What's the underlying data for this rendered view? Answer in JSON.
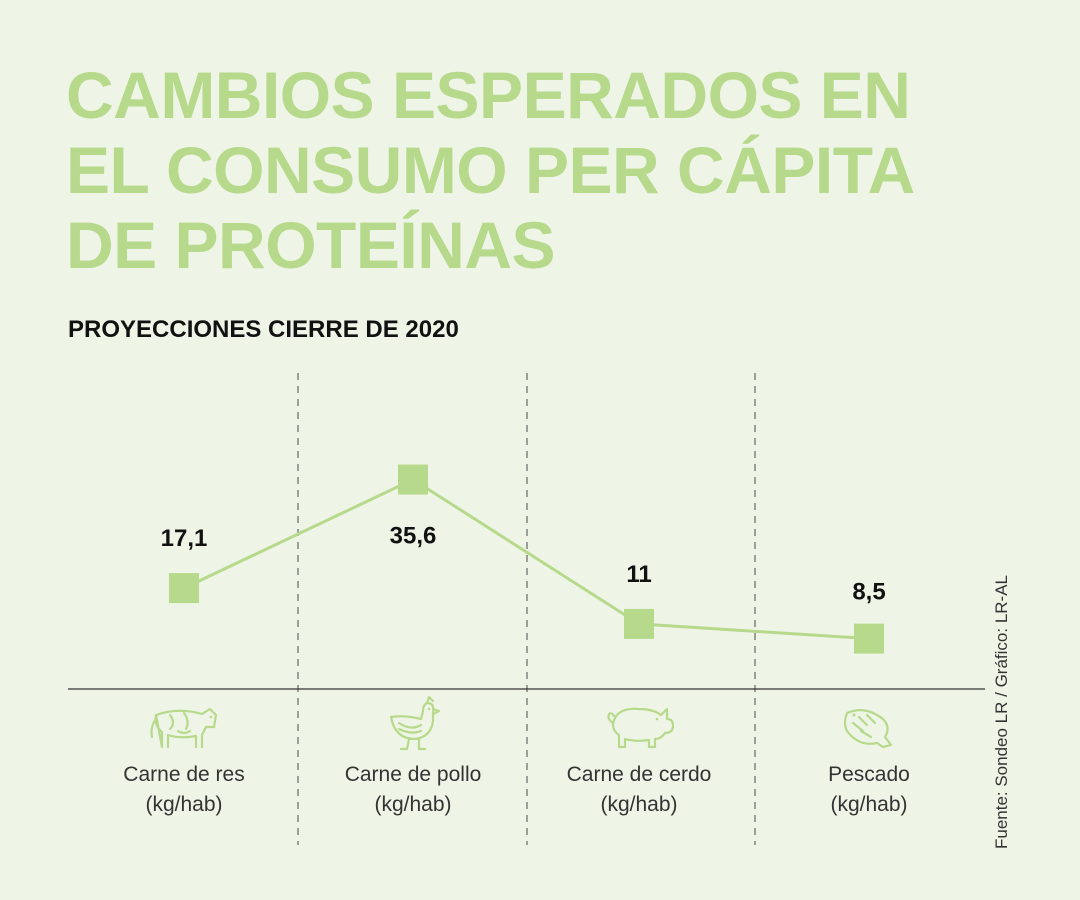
{
  "title_lines": [
    "CAMBIOS ESPERADOS EN",
    "EL CONSUMO PER CÁPITA",
    "DE PROTEÍNAS"
  ],
  "subtitle": "PROYECCIONES CIERRE DE 2020",
  "source": "Fuente: Sondeo LR / Gráfico: LR-AL",
  "colors": {
    "background": "#eef5e6",
    "accent": "#b6d98b",
    "line": "#b6d98b",
    "text": "#111111"
  },
  "chart_data": {
    "type": "line",
    "title": "CAMBIOS ESPERADOS EN EL CONSUMO PER CÁPITA DE PROTEÍNAS",
    "subtitle": "PROYECCIONES CIERRE DE 2020",
    "categories": [
      {
        "line1": "Carne de res",
        "line2": "(kg/hab)",
        "icon": "cow-icon"
      },
      {
        "line1": "Carne de pollo",
        "line2": "(kg/hab)",
        "icon": "chicken-icon"
      },
      {
        "line1": "Carne de cerdo",
        "line2": "(kg/hab)",
        "icon": "pig-icon"
      },
      {
        "line1": "Pescado",
        "line2": "(kg/hab)",
        "icon": "fish-icon"
      }
    ],
    "values": [
      17.1,
      35.6,
      11,
      8.5
    ],
    "value_labels": [
      "17,1",
      "35,6",
      "11",
      "8,5"
    ],
    "marker": "square",
    "grid": "dashed vertical separators",
    "axis": "baseline only"
  }
}
